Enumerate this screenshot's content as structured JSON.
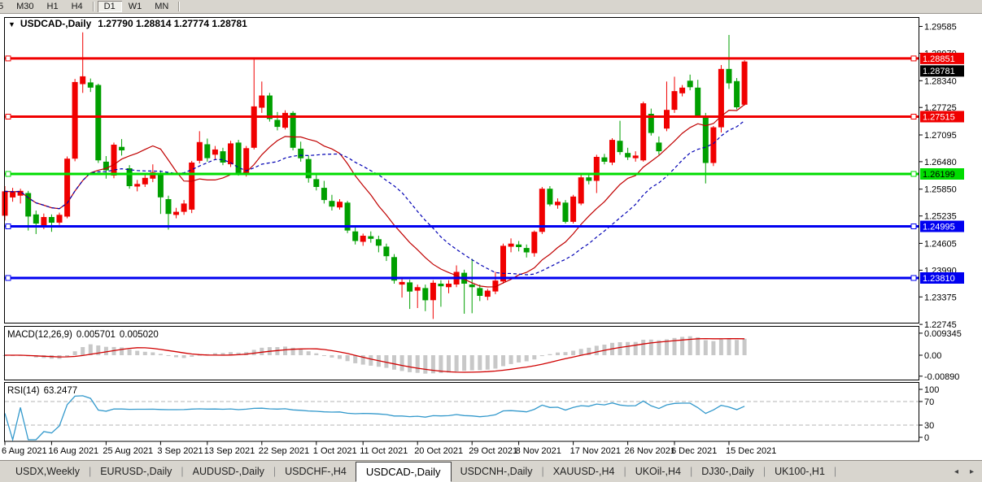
{
  "toolbar": {
    "buttons": [
      {
        "label": "5",
        "active": false,
        "partial": true
      },
      {
        "label": "M30",
        "active": false
      },
      {
        "label": "H1",
        "active": false
      },
      {
        "label": "H4",
        "active": false
      },
      {
        "separator": true
      },
      {
        "label": "D1",
        "active": true
      },
      {
        "label": "W1",
        "active": false
      },
      {
        "label": "MN",
        "active": false
      },
      {
        "separator": true
      }
    ]
  },
  "main_title": {
    "dropdown_glyph": "▼",
    "symbol": "USDCAD-,Daily",
    "ohlc_text": "1.27790 1.28814 1.27774 1.28781"
  },
  "macd_panel": {
    "title": "MACD(12,26,9)",
    "value_main": "0.005701",
    "value_signal": "0.005020"
  },
  "rsi_panel": {
    "title": "RSI(14)",
    "value": "63.2477"
  },
  "chart_data": {
    "type": "candlestick",
    "symbol": "USDCAD-",
    "timeframe": "Daily",
    "current_ohlc": {
      "open": "1.27790",
      "high": "1.28814",
      "low": "1.27774",
      "close": "1.28781"
    },
    "candle_up_color": "#f00000",
    "candle_down_color": "#009f00",
    "y_axis_labels": [
      "1.29585",
      "1.28970",
      "1.28340",
      "1.27725",
      "1.27095",
      "1.26480",
      "1.25850",
      "1.25235",
      "1.24605",
      "1.23990",
      "1.23375",
      "1.22745"
    ],
    "x_tick_labels": [
      {
        "label": "6 Aug 2021",
        "i": 0
      },
      {
        "label": "16 Aug 2021",
        "i": 6
      },
      {
        "label": "25 Aug 2021",
        "i": 13
      },
      {
        "label": "3 Sep 2021",
        "i": 20
      },
      {
        "label": "13 Sep 2021",
        "i": 26
      },
      {
        "label": "22 Sep 2021",
        "i": 33
      },
      {
        "label": "1 Oct 2021",
        "i": 40
      },
      {
        "label": "11 Oct 2021",
        "i": 46
      },
      {
        "label": "20 Oct 2021",
        "i": 53
      },
      {
        "label": "29 Oct 2021",
        "i": 60
      },
      {
        "label": "8 Nov 2021",
        "i": 66
      },
      {
        "label": "17 Nov 2021",
        "i": 73
      },
      {
        "label": "26 Nov 2021",
        "i": 80
      },
      {
        "label": "6 Dec 2021",
        "i": 86
      },
      {
        "label": "15 Dec 2021",
        "i": 93
      }
    ],
    "horizontal_lines": [
      {
        "price": 1.28851,
        "label": "1.28851",
        "color": "#f00000",
        "text": "#ffffff"
      },
      {
        "price": 1.27515,
        "label": "1.27515",
        "color": "#f00000",
        "text": "#ffffff"
      },
      {
        "price": 1.26199,
        "label": "1.26199",
        "color": "#00dc00",
        "text": "#000000"
      },
      {
        "price": 1.24995,
        "label": "1.24995",
        "color": "#0000f0",
        "text": "#ffffff"
      },
      {
        "price": 1.2381,
        "label": "1.23810",
        "color": "#0000f0",
        "text": "#ffffff"
      }
    ],
    "bid": {
      "price": 1.28781,
      "label": "1.28781",
      "bg": "#000000",
      "text": "#ffffff"
    },
    "moving_averages": [
      {
        "period": 12,
        "color": "#c00000",
        "style": "solid"
      },
      {
        "period": 20,
        "color": "#0000b4",
        "style": "dashed"
      }
    ],
    "macd": {
      "params": [
        12,
        26,
        9
      ],
      "histogram_color": "#c8c8c8",
      "signal_color": "#d00000",
      "scale_labels": [
        "0.009345",
        "0.00",
        "-0.00890"
      ]
    },
    "rsi": {
      "period": 14,
      "line_color": "#3399cc",
      "levels": [
        70,
        30
      ],
      "scale_labels": [
        "100",
        "70",
        "30",
        "0"
      ]
    },
    "ohlc": [
      [
        1.2524,
        1.2592,
        1.2513,
        1.258
      ],
      [
        1.2566,
        1.2588,
        1.2556,
        1.2578
      ],
      [
        1.257,
        1.2586,
        1.2552,
        1.2581
      ],
      [
        1.2576,
        1.2581,
        1.249,
        1.2522
      ],
      [
        1.2527,
        1.2536,
        1.2482,
        1.2506
      ],
      [
        1.2501,
        1.2529,
        1.2493,
        1.2521
      ],
      [
        1.2521,
        1.2527,
        1.2487,
        1.2508
      ],
      [
        1.2508,
        1.2531,
        1.2503,
        1.2526
      ],
      [
        1.2522,
        1.266,
        1.2518,
        1.2655
      ],
      [
        1.2655,
        1.2838,
        1.2649,
        1.2831
      ],
      [
        1.2826,
        1.2945,
        1.2806,
        1.2844
      ],
      [
        1.283,
        1.2839,
        1.2808,
        1.2818
      ],
      [
        1.2824,
        1.2827,
        1.2645,
        1.2651
      ],
      [
        1.2648,
        1.2661,
        1.2609,
        1.2628
      ],
      [
        1.2616,
        1.2692,
        1.261,
        1.2687
      ],
      [
        1.2682,
        1.27,
        1.2662,
        1.2674
      ],
      [
        1.2633,
        1.264,
        1.2586,
        1.2592
      ],
      [
        1.2591,
        1.2606,
        1.258,
        1.2597
      ],
      [
        1.2596,
        1.2618,
        1.259,
        1.2611
      ],
      [
        1.2609,
        1.2642,
        1.2601,
        1.2624
      ],
      [
        1.262,
        1.2628,
        1.2528,
        1.2566
      ],
      [
        1.2562,
        1.257,
        1.2492,
        1.2528
      ],
      [
        1.2526,
        1.2542,
        1.2518,
        1.2533
      ],
      [
        1.2533,
        1.256,
        1.2526,
        1.2552
      ],
      [
        1.2538,
        1.265,
        1.253,
        1.2646
      ],
      [
        1.265,
        1.2718,
        1.2644,
        1.2693
      ],
      [
        1.2688,
        1.2701,
        1.2648,
        1.2656
      ],
      [
        1.2664,
        1.2684,
        1.2652,
        1.2676
      ],
      [
        1.2672,
        1.268,
        1.264,
        1.2646
      ],
      [
        1.2642,
        1.2696,
        1.2636,
        1.269
      ],
      [
        1.2692,
        1.2698,
        1.2616,
        1.2622
      ],
      [
        1.262,
        1.2684,
        1.2614,
        1.2679
      ],
      [
        1.268,
        1.2886,
        1.2676,
        1.2775
      ],
      [
        1.2772,
        1.2832,
        1.276,
        1.28
      ],
      [
        1.28,
        1.2806,
        1.274,
        1.2746
      ],
      [
        1.2744,
        1.2762,
        1.272,
        1.2728
      ],
      [
        1.2726,
        1.2766,
        1.2722,
        1.276
      ],
      [
        1.276,
        1.2764,
        1.2674,
        1.268
      ],
      [
        1.2678,
        1.2694,
        1.2648,
        1.2656
      ],
      [
        1.2654,
        1.2662,
        1.26,
        1.261
      ],
      [
        1.2608,
        1.2622,
        1.2582,
        1.259
      ],
      [
        1.2588,
        1.2604,
        1.2552,
        1.256
      ],
      [
        1.2558,
        1.2572,
        1.2536,
        1.2545
      ],
      [
        1.2543,
        1.2562,
        1.2538,
        1.2556
      ],
      [
        1.2554,
        1.2558,
        1.2484,
        1.249
      ],
      [
        1.2488,
        1.2502,
        1.2458,
        1.2466
      ],
      [
        1.2464,
        1.2483,
        1.2455,
        1.2478
      ],
      [
        1.2477,
        1.2488,
        1.2462,
        1.2471
      ],
      [
        1.247,
        1.2478,
        1.244,
        1.2455
      ],
      [
        1.2453,
        1.246,
        1.242,
        1.2431
      ],
      [
        1.2429,
        1.2436,
        1.2368,
        1.2375
      ],
      [
        1.2366,
        1.238,
        1.2336,
        1.2372
      ],
      [
        1.2371,
        1.2377,
        1.231,
        1.235
      ],
      [
        1.2352,
        1.2366,
        1.2312,
        1.236
      ],
      [
        1.2358,
        1.2366,
        1.2305,
        1.233
      ],
      [
        1.233,
        1.2376,
        1.2287,
        1.237
      ],
      [
        1.2368,
        1.2376,
        1.2315,
        1.2362
      ],
      [
        1.236,
        1.2376,
        1.2346,
        1.2368
      ],
      [
        1.2366,
        1.241,
        1.236,
        1.2395
      ],
      [
        1.2393,
        1.24,
        1.2299,
        1.2368
      ],
      [
        1.2366,
        1.2425,
        1.23,
        1.236
      ],
      [
        1.2358,
        1.2366,
        1.2328,
        1.234
      ],
      [
        1.2338,
        1.2356,
        1.233,
        1.2352
      ],
      [
        1.235,
        1.2395,
        1.2344,
        1.2375
      ],
      [
        1.2373,
        1.246,
        1.2368,
        1.2455
      ],
      [
        1.2453,
        1.2472,
        1.244,
        1.246
      ],
      [
        1.2458,
        1.2466,
        1.2442,
        1.2452
      ],
      [
        1.245,
        1.2458,
        1.2428,
        1.244
      ],
      [
        1.2438,
        1.249,
        1.243,
        1.2487
      ],
      [
        1.2487,
        1.259,
        1.2482,
        1.2586
      ],
      [
        1.2586,
        1.2592,
        1.2546,
        1.255
      ],
      [
        1.2548,
        1.2564,
        1.254,
        1.2556
      ],
      [
        1.2554,
        1.256,
        1.2506,
        1.251
      ],
      [
        1.251,
        1.2572,
        1.2506,
        1.2568
      ],
      [
        1.2552,
        1.2618,
        1.2548,
        1.2612
      ],
      [
        1.2612,
        1.262,
        1.2596,
        1.2604
      ],
      [
        1.2604,
        1.2664,
        1.2576,
        1.2659
      ],
      [
        1.2658,
        1.2666,
        1.2642,
        1.2648
      ],
      [
        1.2646,
        1.2702,
        1.264,
        1.2698
      ],
      [
        1.2696,
        1.2742,
        1.2664,
        1.267
      ],
      [
        1.2668,
        1.268,
        1.2652,
        1.2658
      ],
      [
        1.2656,
        1.2672,
        1.2648,
        1.2662
      ],
      [
        1.2651,
        1.2786,
        1.2648,
        1.2782
      ],
      [
        1.2758,
        1.277,
        1.2708,
        1.2714
      ],
      [
        1.2692,
        1.2706,
        1.2664,
        1.2672
      ],
      [
        1.2724,
        1.2832,
        1.2718,
        1.2767
      ],
      [
        1.2767,
        1.2843,
        1.276,
        1.281
      ],
      [
        1.2805,
        1.2824,
        1.2798,
        1.2818
      ],
      [
        1.2834,
        1.2848,
        1.2812,
        1.2819
      ],
      [
        1.2818,
        1.2836,
        1.275,
        1.2752
      ],
      [
        1.2752,
        1.276,
        1.2598,
        1.2645
      ],
      [
        1.2645,
        1.273,
        1.2638,
        1.2727
      ],
      [
        1.2727,
        1.287,
        1.2715,
        1.2861
      ],
      [
        1.2861,
        1.2939,
        1.2815,
        1.2828
      ],
      [
        1.2833,
        1.284,
        1.2768,
        1.2773
      ],
      [
        1.2779,
        1.2881,
        1.2777,
        1.2878
      ]
    ]
  },
  "tabs_bar": {
    "tabs": [
      "USDX,Weekly",
      "EURUSD-,Daily",
      "AUDUSD-,Daily",
      "USDCHF-,H4",
      "USDCAD-,Daily",
      "USDCNH-,Daily",
      "XAUUSD-,H4",
      "UKOil-,H4",
      "DJ30-,Daily",
      "UK100-,H1"
    ],
    "active_index": 4,
    "divider_glyph": "|",
    "scroll_left_glyph": "◂",
    "scroll_right_glyph": "▸"
  }
}
